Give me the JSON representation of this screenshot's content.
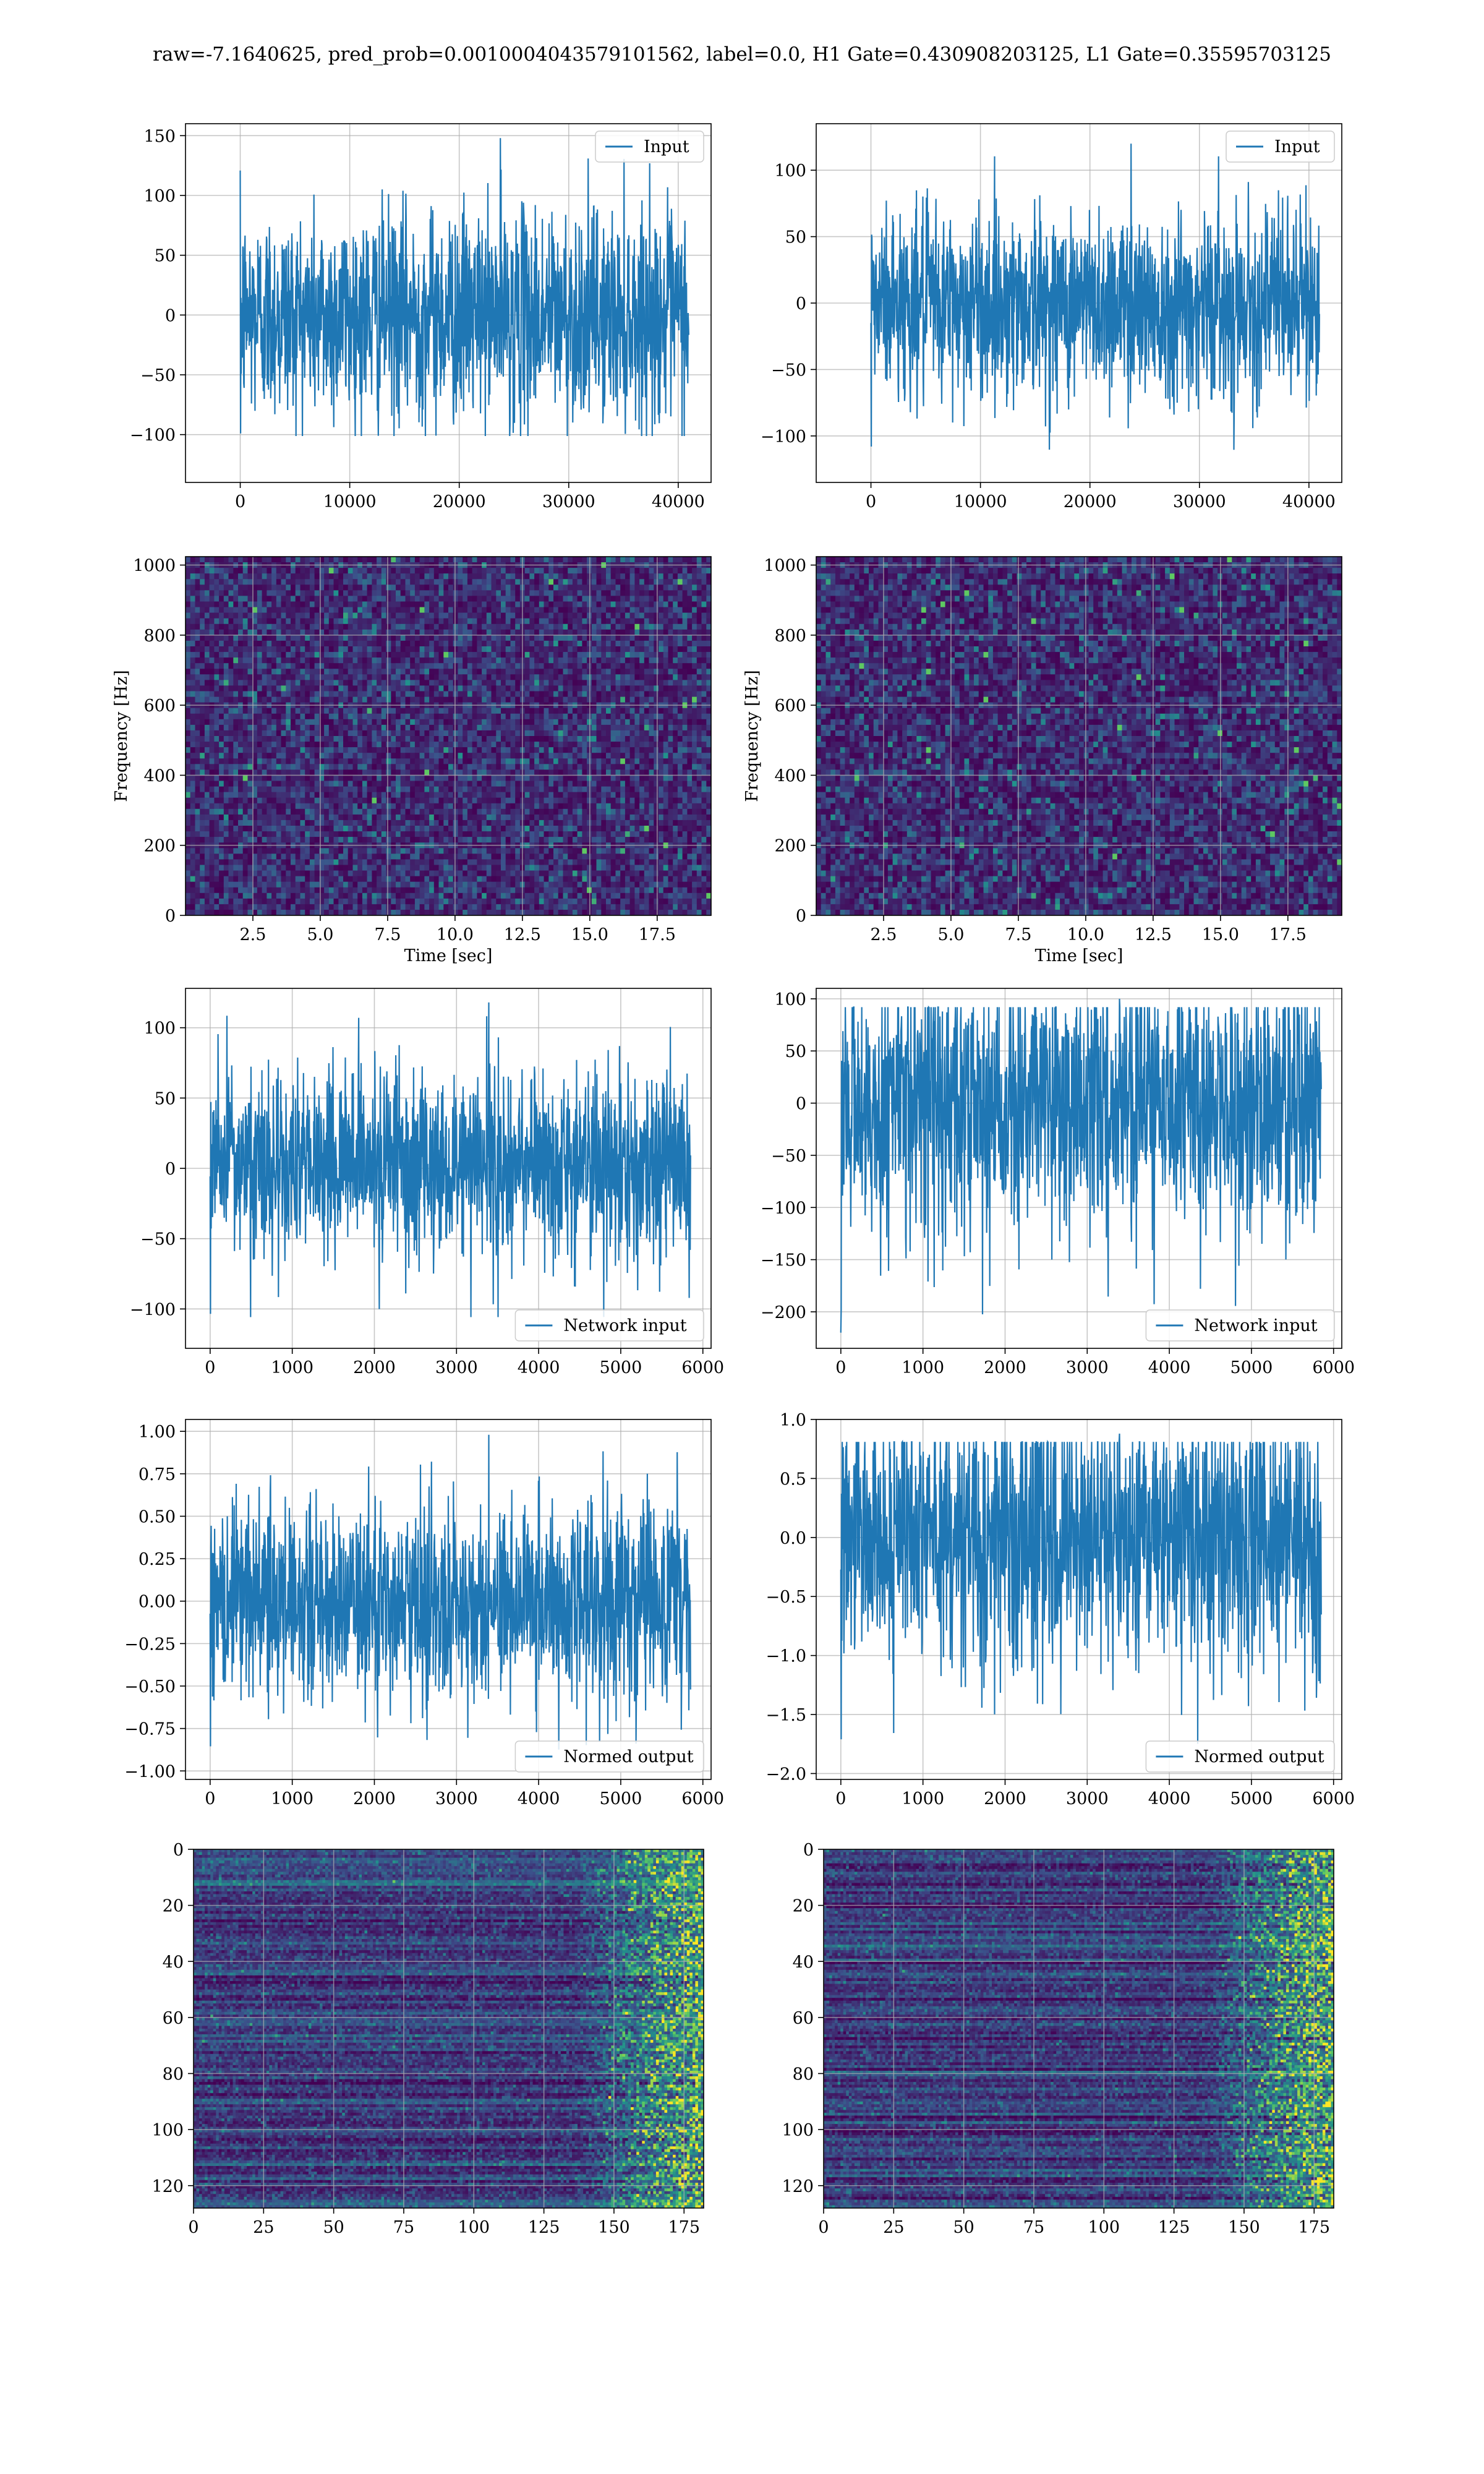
{
  "title": "raw=-7.1640625, pred_prob=0.0010004043579101562, label=0.0, H1 Gate=0.430908203125, L1 Gate=0.35595703125",
  "colors": {
    "line": "#1f77b4",
    "grid": "#b0b0b0",
    "spec_bg": "#3b1d6b",
    "frame": "#000000"
  },
  "chart_data": [
    {
      "id": "input_h1",
      "type": "line",
      "xlim": [
        -5000,
        43000
      ],
      "ylim": [
        -140,
        160
      ],
      "xticks": [
        0,
        10000,
        20000,
        30000,
        40000
      ],
      "yticks": [
        -100,
        -50,
        0,
        50,
        100,
        150
      ],
      "xticklabels": [
        "0",
        "10000",
        "20000",
        "30000",
        "40000"
      ],
      "yticklabels": [
        "−100",
        "−50",
        "0",
        "50",
        "100",
        "150"
      ],
      "series": [
        {
          "name": "Input",
          "x_range": [
            0,
            40960
          ],
          "amplitude": [
            -110,
            148
          ]
        }
      ],
      "legend": "top-right",
      "grid": true,
      "xlabel": "",
      "ylabel": ""
    },
    {
      "id": "input_l1",
      "type": "line",
      "xlim": [
        -5000,
        43000
      ],
      "ylim": [
        -135,
        135
      ],
      "xticks": [
        0,
        10000,
        20000,
        30000,
        40000
      ],
      "yticks": [
        -100,
        -50,
        0,
        50,
        100
      ],
      "xticklabels": [
        "0",
        "10000",
        "20000",
        "30000",
        "40000"
      ],
      "yticklabels": [
        "−100",
        "−50",
        "0",
        "50",
        "100"
      ],
      "series": [
        {
          "name": "Input",
          "x_range": [
            0,
            40960
          ],
          "amplitude": [
            -120,
            120
          ]
        }
      ],
      "legend": "top-right",
      "grid": true,
      "xlabel": "",
      "ylabel": ""
    },
    {
      "id": "spec_h1",
      "type": "heatmap",
      "xlim": [
        0,
        19.5
      ],
      "ylim": [
        0,
        1024
      ],
      "xticks": [
        2.5,
        5,
        7.5,
        10,
        12.5,
        15,
        17.5
      ],
      "yticks": [
        0,
        200,
        400,
        600,
        800,
        1000
      ],
      "xticklabels": [
        "2.5",
        "5.0",
        "7.5",
        "10.0",
        "12.5",
        "15.0",
        "17.5"
      ],
      "yticklabels": [
        "0",
        "200",
        "400",
        "600",
        "800",
        "1000"
      ],
      "xlabel": "Time [sec]",
      "ylabel": "Frequency [Hz]",
      "grid": true,
      "colormap": "viridis"
    },
    {
      "id": "spec_l1",
      "type": "heatmap",
      "xlim": [
        0,
        19.5
      ],
      "ylim": [
        0,
        1024
      ],
      "xticks": [
        2.5,
        5,
        7.5,
        10,
        12.5,
        15,
        17.5
      ],
      "yticks": [
        0,
        200,
        400,
        600,
        800,
        1000
      ],
      "xticklabels": [
        "2.5",
        "5.0",
        "7.5",
        "10.0",
        "12.5",
        "15.0",
        "17.5"
      ],
      "yticklabels": [
        "0",
        "200",
        "400",
        "600",
        "800",
        "1000"
      ],
      "xlabel": "Time [sec]",
      "ylabel": "Frequency [Hz]",
      "grid": true,
      "colormap": "viridis"
    },
    {
      "id": "net_h1",
      "type": "line",
      "xlim": [
        -300,
        6100
      ],
      "ylim": [
        -128,
        128
      ],
      "xticks": [
        0,
        1000,
        2000,
        3000,
        4000,
        5000,
        6000
      ],
      "yticks": [
        -100,
        -50,
        0,
        50,
        100
      ],
      "xticklabels": [
        "0",
        "1000",
        "2000",
        "3000",
        "4000",
        "5000",
        "6000"
      ],
      "yticklabels": [
        "−100",
        "−50",
        "0",
        "50",
        "100"
      ],
      "series": [
        {
          "name": "Network input",
          "x_range": [
            0,
            5850
          ],
          "amplitude": [
            -115,
            118
          ]
        }
      ],
      "legend": "bottom-right",
      "grid": true,
      "xlabel": "",
      "ylabel": ""
    },
    {
      "id": "net_l1",
      "type": "line",
      "xlim": [
        -300,
        6100
      ],
      "ylim": [
        -235,
        110
      ],
      "xticks": [
        0,
        1000,
        2000,
        3000,
        4000,
        5000,
        6000
      ],
      "yticks": [
        -200,
        -150,
        -100,
        -50,
        0,
        50,
        100
      ],
      "xticklabels": [
        "0",
        "1000",
        "2000",
        "3000",
        "4000",
        "5000",
        "6000"
      ],
      "yticklabels": [
        "−200",
        "−150",
        "−100",
        "−50",
        "0",
        "50",
        "100"
      ],
      "series": [
        {
          "name": "Network input",
          "x_range": [
            0,
            5850
          ],
          "amplitude": [
            -220,
            100
          ]
        }
      ],
      "legend": "bottom-right",
      "grid": true,
      "xlabel": "",
      "ylabel": ""
    },
    {
      "id": "norm_h1",
      "type": "line",
      "xlim": [
        -300,
        6100
      ],
      "ylim": [
        -1.05,
        1.07
      ],
      "xticks": [
        0,
        1000,
        2000,
        3000,
        4000,
        5000,
        6000
      ],
      "yticks": [
        -1.0,
        -0.75,
        -0.5,
        -0.25,
        0,
        0.25,
        0.5,
        0.75,
        1.0
      ],
      "xticklabels": [
        "0",
        "1000",
        "2000",
        "3000",
        "4000",
        "5000",
        "6000"
      ],
      "yticklabels": [
        "−1.00",
        "−0.75",
        "−0.50",
        "−0.25",
        "0.00",
        "0.25",
        "0.50",
        "0.75",
        "1.00"
      ],
      "series": [
        {
          "name": "Normed output",
          "x_range": [
            0,
            5850
          ],
          "amplitude": [
            -0.95,
            0.98
          ]
        }
      ],
      "legend": "bottom-right",
      "grid": true,
      "xlabel": "",
      "ylabel": ""
    },
    {
      "id": "norm_l1",
      "type": "line",
      "xlim": [
        -300,
        6100
      ],
      "ylim": [
        -2.05,
        1.0
      ],
      "xticks": [
        0,
        1000,
        2000,
        3000,
        4000,
        5000,
        6000
      ],
      "yticks": [
        -2.0,
        -1.5,
        -1.0,
        -0.5,
        0,
        0.5,
        1.0
      ],
      "xticklabels": [
        "0",
        "1000",
        "2000",
        "3000",
        "4000",
        "5000",
        "6000"
      ],
      "yticklabels": [
        "−2.0",
        "−1.5",
        "−1.0",
        "−0.5",
        "0.0",
        "0.5",
        "1.0"
      ],
      "series": [
        {
          "name": "Normed output",
          "x_range": [
            0,
            5850
          ],
          "amplitude": [
            -1.9,
            0.88
          ]
        }
      ],
      "legend": "bottom-right",
      "grid": true,
      "xlabel": "",
      "ylabel": ""
    },
    {
      "id": "hid_h1",
      "type": "heatmap",
      "xlim": [
        0,
        182
      ],
      "ylim": [
        128,
        0
      ],
      "xticks": [
        0,
        25,
        50,
        75,
        100,
        125,
        150,
        175
      ],
      "yticks": [
        0,
        20,
        40,
        60,
        80,
        100,
        120
      ],
      "xticklabels": [
        "0",
        "25",
        "50",
        "75",
        "100",
        "125",
        "150",
        "175"
      ],
      "yticklabels": [
        "0",
        "20",
        "40",
        "60",
        "80",
        "100",
        "120"
      ],
      "grid": true,
      "colormap": "viridis",
      "xlabel": "",
      "ylabel": ""
    },
    {
      "id": "hid_l1",
      "type": "heatmap",
      "xlim": [
        0,
        182
      ],
      "ylim": [
        128,
        0
      ],
      "xticks": [
        0,
        25,
        50,
        75,
        100,
        125,
        150,
        175
      ],
      "yticks": [
        0,
        20,
        40,
        60,
        80,
        100,
        120
      ],
      "xticklabels": [
        "0",
        "25",
        "50",
        "75",
        "100",
        "125",
        "150",
        "175"
      ],
      "yticklabels": [
        "0",
        "20",
        "40",
        "60",
        "80",
        "100",
        "120"
      ],
      "grid": true,
      "colormap": "viridis",
      "xlabel": "",
      "ylabel": ""
    }
  ]
}
